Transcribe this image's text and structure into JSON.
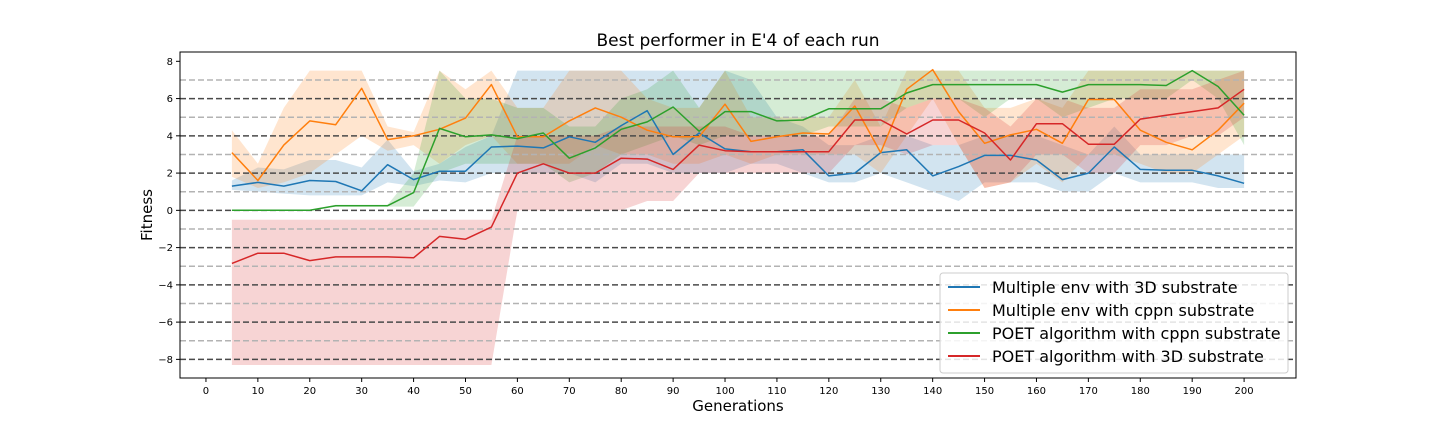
{
  "chart_data": {
    "type": "line",
    "title": "Best performer in E'4 of each run",
    "xlabel": "Generations",
    "ylabel": "Fitness",
    "xlim": [
      -5,
      210
    ],
    "ylim": [
      -9,
      8.5
    ],
    "xticks": [
      0,
      10,
      20,
      30,
      40,
      50,
      60,
      70,
      80,
      90,
      100,
      110,
      120,
      130,
      140,
      150,
      160,
      170,
      180,
      190,
      200
    ],
    "yticks": [
      -8,
      -6,
      -4,
      -2,
      0,
      2,
      4,
      6,
      8
    ],
    "hlines_dark": [
      -8,
      -6,
      -4,
      -2,
      0,
      2,
      4,
      6
    ],
    "hlines_light": [
      -7,
      -5,
      -3,
      -1,
      1,
      3,
      5,
      7
    ],
    "grid": false,
    "legend_position": "lower-right",
    "x": [
      5,
      10,
      15,
      20,
      25,
      30,
      35,
      40,
      45,
      50,
      55,
      60,
      65,
      70,
      75,
      80,
      85,
      90,
      95,
      100,
      105,
      110,
      115,
      120,
      125,
      130,
      135,
      140,
      145,
      150,
      155,
      160,
      165,
      170,
      175,
      180,
      185,
      190,
      195,
      200
    ],
    "series": [
      {
        "name": "Multiple env  with 3D substrate",
        "color": "#1f77b4",
        "values": [
          1.3,
          1.5,
          1.3,
          1.6,
          1.55,
          1.05,
          2.45,
          1.65,
          2.1,
          2.1,
          3.4,
          3.45,
          3.35,
          3.95,
          3.65,
          4.55,
          5.35,
          3.0,
          4.15,
          3.3,
          3.15,
          3.15,
          3.25,
          1.85,
          2.0,
          3.1,
          3.25,
          1.85,
          2.35,
          2.95,
          2.95,
          2.7,
          1.65,
          2.0,
          3.4,
          2.2,
          2.15,
          2.15,
          1.85,
          1.45
        ],
        "upper": [
          1.6,
          2.3,
          2.2,
          2.7,
          2.7,
          2.3,
          3.8,
          2.1,
          2.5,
          3.4,
          4.0,
          7.5,
          7.5,
          7.5,
          7.5,
          7.5,
          7.5,
          7.5,
          7.5,
          7.5,
          7.0,
          5.0,
          4.5,
          3.5,
          3.5,
          4.0,
          4.0,
          3.5,
          3.5,
          4.0,
          4.0,
          4.0,
          3.5,
          3.0,
          4.5,
          3.0,
          3.0,
          3.0,
          3.0,
          3.0
        ],
        "lower": [
          1.1,
          1.0,
          0.9,
          0.8,
          0.8,
          0.8,
          1.5,
          1.3,
          1.6,
          1.5,
          2.0,
          2.0,
          2.0,
          2.0,
          1.5,
          2.5,
          2.5,
          2.0,
          2.0,
          2.0,
          2.5,
          2.5,
          2.0,
          1.5,
          1.5,
          2.0,
          1.5,
          1.0,
          0.5,
          1.5,
          1.5,
          1.5,
          1.0,
          1.0,
          2.0,
          1.5,
          1.5,
          1.5,
          1.2,
          1.2
        ]
      },
      {
        "name": "Multiple env  with cppn substrate",
        "color": "#ff7f0e",
        "values": [
          3.1,
          1.6,
          3.5,
          4.8,
          4.6,
          6.55,
          3.8,
          4.0,
          4.35,
          4.95,
          6.75,
          3.95,
          3.95,
          4.8,
          5.5,
          5.0,
          4.3,
          3.95,
          3.95,
          5.7,
          3.7,
          3.95,
          4.15,
          4.1,
          5.6,
          3.1,
          6.5,
          7.55,
          5.3,
          3.6,
          4.05,
          4.35,
          3.6,
          5.95,
          5.95,
          4.3,
          3.65,
          3.25,
          4.3,
          5.75
        ],
        "upper": [
          4.3,
          2.5,
          5.5,
          7.5,
          7.5,
          7.5,
          4.5,
          4.2,
          7.5,
          6.5,
          7.5,
          5.5,
          5.5,
          7.5,
          7.5,
          7.5,
          6.0,
          5.5,
          5.5,
          7.5,
          5.0,
          5.0,
          5.0,
          5.0,
          7.0,
          4.5,
          7.5,
          7.5,
          7.5,
          5.5,
          5.5,
          6.0,
          5.5,
          7.5,
          7.5,
          7.5,
          7.5,
          7.5,
          7.5,
          7.5
        ],
        "lower": [
          1.8,
          1.2,
          1.5,
          2.0,
          3.0,
          4.0,
          3.2,
          3.5,
          2.5,
          3.5,
          4.0,
          2.5,
          2.5,
          2.5,
          3.5,
          3.0,
          3.0,
          2.5,
          2.5,
          3.0,
          2.5,
          3.0,
          3.0,
          3.0,
          3.0,
          2.0,
          4.0,
          6.0,
          3.5,
          1.2,
          1.5,
          2.5,
          1.5,
          3.0,
          3.0,
          2.5,
          2.0,
          2.0,
          3.0,
          4.0
        ]
      },
      {
        "name": "POET algorithm with cppn substrate",
        "color": "#2ca02c",
        "values": [
          0.0,
          0.0,
          0.0,
          0.0,
          0.25,
          0.25,
          0.25,
          0.95,
          4.4,
          3.95,
          4.05,
          3.85,
          4.15,
          2.8,
          3.35,
          4.35,
          4.75,
          5.55,
          4.25,
          5.3,
          5.3,
          4.8,
          4.85,
          5.45,
          5.45,
          5.45,
          6.3,
          6.75,
          6.75,
          6.75,
          6.75,
          6.75,
          6.35,
          6.75,
          6.75,
          6.75,
          6.7,
          7.5,
          6.65,
          5.1
        ],
        "upper": [
          0.0,
          0.0,
          0.0,
          0.0,
          0.3,
          0.3,
          0.3,
          2.0,
          7.5,
          6.0,
          6.0,
          5.5,
          5.5,
          4.5,
          4.5,
          6.0,
          6.5,
          7.5,
          5.5,
          7.5,
          7.5,
          7.5,
          7.5,
          7.5,
          7.5,
          7.5,
          7.5,
          7.5,
          7.5,
          7.5,
          7.5,
          7.5,
          7.5,
          7.5,
          7.5,
          7.5,
          7.5,
          7.5,
          7.5,
          7.5
        ],
        "lower": [
          0.0,
          0.0,
          0.0,
          0.0,
          0.2,
          0.2,
          0.2,
          0.2,
          2.0,
          2.5,
          2.5,
          2.5,
          2.5,
          1.5,
          2.0,
          3.0,
          3.5,
          4.0,
          3.5,
          4.0,
          4.0,
          4.0,
          4.0,
          4.5,
          4.5,
          4.5,
          5.5,
          6.0,
          6.0,
          5.0,
          6.0,
          6.0,
          5.0,
          5.5,
          6.0,
          6.0,
          6.0,
          7.0,
          6.0,
          3.5
        ]
      },
      {
        "name": "POET algorithm with 3D substrate",
        "color": "#d62728",
        "values": [
          -2.85,
          -2.3,
          -2.3,
          -2.7,
          -2.5,
          -2.5,
          -2.5,
          -2.55,
          -1.4,
          -1.55,
          -0.9,
          2.0,
          2.5,
          2.0,
          2.0,
          2.8,
          2.75,
          2.2,
          3.5,
          3.2,
          3.15,
          3.15,
          3.15,
          3.15,
          4.85,
          4.85,
          4.1,
          4.85,
          4.85,
          4.15,
          2.7,
          4.65,
          4.65,
          3.55,
          3.55,
          4.9,
          5.1,
          5.3,
          5.5,
          6.5
        ],
        "upper": [
          -0.5,
          -0.5,
          -0.5,
          -0.5,
          -0.5,
          -0.5,
          -0.5,
          -0.5,
          -0.5,
          -0.5,
          -0.5,
          4.0,
          4.0,
          4.0,
          4.0,
          4.5,
          4.5,
          4.5,
          4.5,
          4.5,
          4.0,
          4.0,
          4.0,
          4.0,
          6.0,
          6.0,
          5.5,
          6.0,
          6.0,
          5.5,
          4.5,
          6.0,
          6.0,
          5.5,
          5.5,
          6.5,
          6.5,
          6.5,
          7.0,
          7.5
        ],
        "lower": [
          -8.3,
          -8.3,
          -8.3,
          -8.3,
          -8.3,
          -8.3,
          -8.3,
          -8.3,
          -8.3,
          -8.3,
          -8.3,
          0.0,
          0.0,
          0.0,
          0.0,
          0.0,
          0.5,
          0.5,
          2.0,
          2.0,
          2.0,
          2.0,
          2.0,
          2.0,
          3.5,
          3.5,
          3.0,
          3.5,
          3.5,
          1.2,
          1.5,
          3.0,
          3.0,
          2.0,
          2.0,
          3.5,
          3.5,
          4.0,
          4.0,
          5.0
        ]
      }
    ]
  }
}
